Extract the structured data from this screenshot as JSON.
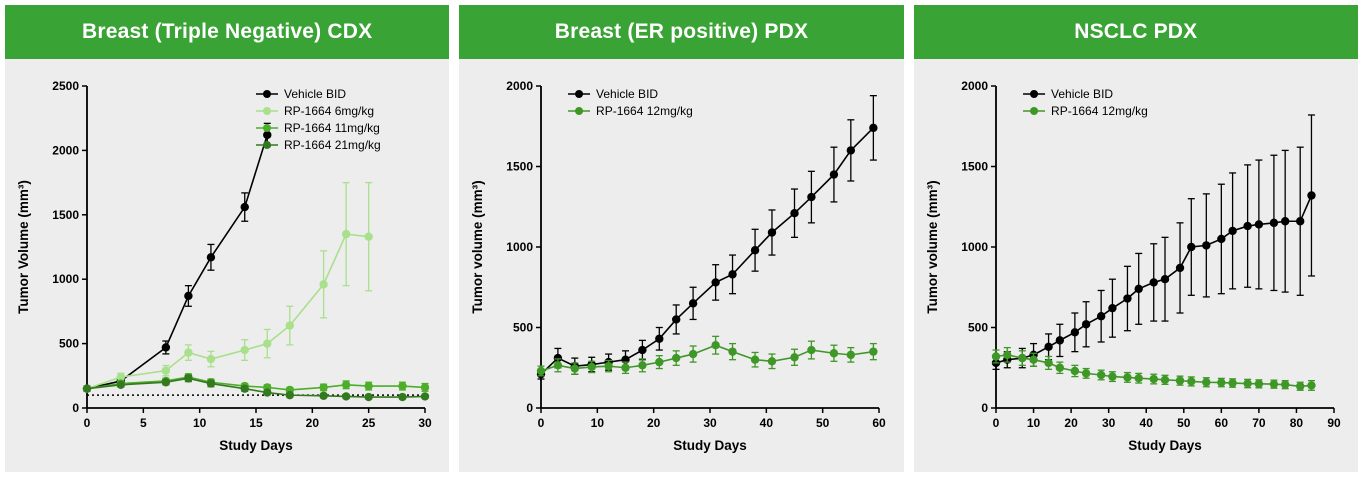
{
  "theme": {
    "header_green": "#3aa335",
    "panel_background": "#ededed",
    "page_background": "#ffffff",
    "title_text": "#ffffff",
    "axis_color": "#000000"
  },
  "chart_data": [
    {
      "type": "line",
      "title": "Breast (Triple Negative) CDX",
      "xlabel": "Study Days",
      "ylabel": "Tumor Volume (mm³)",
      "xlim": [
        0,
        30
      ],
      "ylim": [
        0,
        2500
      ],
      "xticks": [
        0,
        5,
        10,
        15,
        20,
        25,
        30
      ],
      "yticks": [
        0,
        500,
        1000,
        1500,
        2000,
        2500
      ],
      "grid": false,
      "legend_position": "top-right",
      "baseline": {
        "y": 100,
        "style": "dotted"
      },
      "series": [
        {
          "name": "Vehicle BID",
          "color": "#000000",
          "x": [
            0,
            3,
            7,
            9,
            11,
            14,
            16
          ],
          "y": [
            150,
            210,
            470,
            870,
            1170,
            1560,
            2120
          ],
          "err": [
            20,
            30,
            50,
            80,
            100,
            110,
            90
          ]
        },
        {
          "name": "RP-1664 6mg/kg",
          "color": "#a8e08c",
          "x": [
            0,
            3,
            7,
            9,
            11,
            14,
            16,
            18,
            21,
            23,
            25
          ],
          "y": [
            150,
            240,
            290,
            430,
            380,
            450,
            500,
            640,
            960,
            1350,
            1330
          ],
          "err": [
            15,
            30,
            40,
            60,
            60,
            80,
            110,
            150,
            260,
            400,
            420
          ]
        },
        {
          "name": "RP-1664 11mg/kg",
          "color": "#4cae29",
          "x": [
            0,
            3,
            7,
            9,
            11,
            14,
            16,
            18,
            21,
            23,
            25,
            28,
            30
          ],
          "y": [
            150,
            190,
            210,
            240,
            200,
            170,
            160,
            140,
            160,
            180,
            170,
            170,
            160
          ],
          "err": [
            10,
            15,
            20,
            25,
            25,
            20,
            20,
            20,
            25,
            30,
            30,
            30,
            30
          ]
        },
        {
          "name": "RP-1664 21mg/kg",
          "color": "#33791f",
          "x": [
            0,
            3,
            7,
            9,
            11,
            14,
            16,
            18,
            21,
            23,
            25,
            28,
            30
          ],
          "y": [
            150,
            180,
            200,
            230,
            190,
            150,
            120,
            100,
            95,
            90,
            85,
            85,
            90
          ],
          "err": [
            10,
            15,
            20,
            25,
            25,
            20,
            15,
            15,
            15,
            15,
            15,
            15,
            15
          ]
        }
      ]
    },
    {
      "type": "line",
      "title": "Breast (ER positive) PDX",
      "xlabel": "Study Days",
      "ylabel": "Tumor volume (mm³)",
      "xlim": [
        0,
        60
      ],
      "ylim": [
        0,
        2000
      ],
      "xticks": [
        0,
        10,
        20,
        30,
        40,
        50,
        60
      ],
      "yticks": [
        0,
        500,
        1000,
        1500,
        2000
      ],
      "grid": false,
      "legend_position": "top-left",
      "series": [
        {
          "name": "Vehicle BID",
          "color": "#000000",
          "x": [
            0,
            3,
            6,
            9,
            12,
            15,
            18,
            21,
            24,
            27,
            31,
            34,
            38,
            41,
            45,
            48,
            52,
            55,
            59
          ],
          "y": [
            210,
            310,
            260,
            270,
            285,
            300,
            360,
            430,
            550,
            650,
            780,
            830,
            980,
            1090,
            1210,
            1310,
            1450,
            1600,
            1740
          ],
          "err": [
            30,
            60,
            50,
            45,
            50,
            55,
            60,
            70,
            90,
            100,
            110,
            120,
            130,
            140,
            150,
            160,
            170,
            190,
            200
          ]
        },
        {
          "name": "RP-1664 12mg/kg",
          "color": "#3f9727",
          "x": [
            0,
            3,
            6,
            9,
            12,
            15,
            18,
            21,
            24,
            27,
            31,
            34,
            38,
            41,
            45,
            48,
            52,
            55,
            59
          ],
          "y": [
            230,
            265,
            245,
            255,
            260,
            250,
            265,
            285,
            310,
            335,
            390,
            350,
            300,
            290,
            315,
            360,
            340,
            330,
            350
          ],
          "err": [
            30,
            40,
            35,
            35,
            35,
            35,
            40,
            40,
            45,
            50,
            55,
            50,
            45,
            45,
            50,
            55,
            50,
            45,
            50
          ]
        }
      ]
    },
    {
      "type": "line",
      "title": "NSCLC PDX",
      "xlabel": "Study Days",
      "ylabel": "Tumor volume (mm³)",
      "xlim": [
        0,
        90
      ],
      "ylim": [
        0,
        2000
      ],
      "xticks": [
        0,
        10,
        20,
        30,
        40,
        50,
        60,
        70,
        80,
        90
      ],
      "yticks": [
        0,
        500,
        1000,
        1500,
        2000
      ],
      "grid": false,
      "legend_position": "top-left",
      "series": [
        {
          "name": "Vehicle BID",
          "color": "#000000",
          "x": [
            0,
            3,
            7,
            10,
            14,
            17,
            21,
            24,
            28,
            31,
            35,
            38,
            42,
            45,
            49,
            52,
            56,
            60,
            63,
            67,
            70,
            74,
            77,
            81,
            84
          ],
          "y": [
            280,
            300,
            310,
            330,
            380,
            420,
            470,
            520,
            570,
            620,
            680,
            740,
            780,
            800,
            870,
            1000,
            1010,
            1050,
            1100,
            1130,
            1140,
            1150,
            1160,
            1160,
            1320
          ],
          "err": [
            40,
            50,
            60,
            70,
            80,
            100,
            120,
            140,
            160,
            180,
            200,
            220,
            240,
            260,
            280,
            300,
            320,
            340,
            360,
            380,
            400,
            420,
            440,
            460,
            500
          ]
        },
        {
          "name": "RP-1664 12mg/kg",
          "color": "#3f9727",
          "x": [
            0,
            3,
            7,
            10,
            14,
            17,
            21,
            24,
            28,
            31,
            35,
            38,
            42,
            45,
            49,
            52,
            56,
            60,
            63,
            67,
            70,
            74,
            77,
            81,
            84
          ],
          "y": [
            320,
            330,
            310,
            300,
            280,
            250,
            230,
            215,
            205,
            195,
            190,
            185,
            180,
            175,
            170,
            165,
            160,
            158,
            155,
            152,
            150,
            148,
            145,
            135,
            140
          ],
          "err": [
            40,
            45,
            45,
            40,
            40,
            35,
            35,
            30,
            30,
            30,
            30,
            30,
            30,
            28,
            28,
            28,
            28,
            26,
            26,
            26,
            25,
            25,
            25,
            25,
            30
          ]
        }
      ]
    }
  ]
}
